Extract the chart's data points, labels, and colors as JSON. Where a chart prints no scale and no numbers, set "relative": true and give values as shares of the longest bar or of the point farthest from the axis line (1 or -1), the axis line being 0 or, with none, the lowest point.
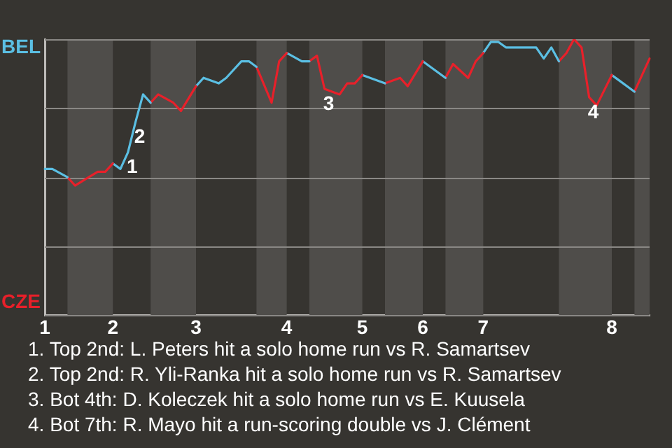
{
  "chart_data": {
    "type": "line",
    "relative": true,
    "grid": "y",
    "categories": [
      "1",
      null,
      null,
      null,
      null,
      null,
      null,
      null,
      null,
      "2",
      null,
      null,
      null,
      null,
      null,
      null,
      null,
      null,
      null,
      null,
      "3",
      null,
      null,
      null,
      null,
      null,
      null,
      null,
      null,
      null,
      null,
      null,
      "4",
      null,
      null,
      null,
      null,
      null,
      null,
      null,
      null,
      null,
      "5",
      null,
      null,
      null,
      null,
      null,
      null,
      null,
      "6",
      null,
      null,
      null,
      null,
      null,
      null,
      null,
      "7",
      null,
      null,
      null,
      null,
      null,
      null,
      null,
      null,
      null,
      null,
      null,
      null,
      null,
      null,
      null,
      null,
      "8",
      null,
      null,
      null,
      null,
      null
    ],
    "series": [
      {
        "color": "#5bbfe3",
        "values": [
          0.53,
          0.53,
          null,
          0.5,
          null,
          null,
          null,
          null,
          null,
          null,
          null,
          null,
          null,
          null,
          null,
          null,
          null,
          null,
          null,
          null,
          null,
          null,
          null,
          null,
          null,
          null,
          null,
          null,
          null,
          null,
          null,
          null,
          null,
          null,
          null,
          null,
          null,
          null,
          null,
          null,
          null,
          null,
          null,
          null,
          null,
          null,
          null,
          null,
          null,
          null,
          null,
          null,
          null,
          null,
          null,
          null,
          null,
          null,
          null,
          null,
          null,
          null,
          null,
          null,
          null,
          null,
          null,
          null,
          null,
          null,
          null,
          null,
          null,
          null,
          null,
          null,
          null,
          null,
          null,
          null,
          null
        ]
      },
      {
        "color": "#e8202a",
        "values": [
          null,
          null,
          null,
          0.5,
          0.47,
          null,
          null,
          0.52,
          0.52,
          0.55,
          null,
          null,
          null,
          null,
          null,
          null,
          null,
          null,
          null,
          null,
          null,
          null,
          null,
          null,
          null,
          null,
          null,
          null,
          null,
          null,
          null,
          null,
          null,
          null,
          null,
          null,
          null,
          null,
          null,
          null,
          null,
          null,
          null,
          null,
          null,
          null,
          null,
          null,
          null,
          null,
          null,
          null,
          null,
          null,
          null,
          null,
          null,
          null,
          null,
          null,
          null,
          null,
          null,
          null,
          null,
          null,
          null,
          null,
          null,
          null,
          null,
          null,
          null,
          null,
          null,
          null,
          null,
          null,
          null,
          null,
          null
        ]
      },
      {
        "color": "#5bbfe3",
        "values": [
          null,
          null,
          null,
          null,
          null,
          null,
          null,
          null,
          null,
          0.55,
          0.53,
          0.59,
          0.7,
          0.8,
          0.77,
          null,
          null,
          null,
          null,
          null,
          null,
          null,
          null,
          null,
          null,
          null,
          null,
          null,
          null,
          null,
          null,
          null,
          null,
          null,
          null,
          null,
          null,
          null,
          null,
          null,
          null,
          null,
          null,
          null,
          null,
          null,
          null,
          null,
          null,
          null,
          null,
          null,
          null,
          null,
          null,
          null,
          null,
          null,
          null,
          null,
          null,
          null,
          null,
          null,
          null,
          null,
          null,
          null,
          null,
          null,
          null,
          null,
          null,
          null,
          null,
          null,
          null,
          null,
          null,
          null,
          null
        ]
      },
      {
        "color": "#e8202a",
        "values": [
          null,
          null,
          null,
          null,
          null,
          null,
          null,
          null,
          null,
          null,
          null,
          null,
          null,
          null,
          0.77,
          0.8,
          null,
          0.77,
          0.74,
          null,
          0.83,
          null,
          null,
          null,
          null,
          null,
          null,
          null,
          null,
          null,
          null,
          null,
          null,
          null,
          null,
          null,
          null,
          null,
          null,
          null,
          null,
          null,
          null,
          null,
          null,
          null,
          null,
          null,
          null,
          null,
          null,
          null,
          null,
          null,
          null,
          null,
          null,
          null,
          null,
          null,
          null,
          null,
          null,
          null,
          null,
          null,
          null,
          null,
          null,
          null,
          null,
          null,
          null,
          null,
          null,
          null,
          null,
          null,
          null,
          null,
          null
        ]
      },
      {
        "color": "#5bbfe3",
        "values": [
          null,
          null,
          null,
          null,
          null,
          null,
          null,
          null,
          null,
          null,
          null,
          null,
          null,
          null,
          null,
          null,
          null,
          null,
          null,
          null,
          0.83,
          0.86,
          null,
          0.84,
          0.86,
          null,
          0.92,
          0.92,
          0.9,
          null,
          null,
          null,
          null,
          null,
          null,
          null,
          null,
          null,
          null,
          null,
          null,
          null,
          null,
          null,
          null,
          null,
          null,
          null,
          null,
          null,
          null,
          null,
          null,
          null,
          null,
          null,
          null,
          null,
          null,
          null,
          null,
          null,
          null,
          null,
          null,
          null,
          null,
          null,
          null,
          null,
          null,
          null,
          null,
          null,
          null,
          null,
          null,
          null,
          null,
          null,
          null
        ]
      },
      {
        "color": "#e8202a",
        "values": [
          null,
          null,
          null,
          null,
          null,
          null,
          null,
          null,
          null,
          null,
          null,
          null,
          null,
          null,
          null,
          null,
          null,
          null,
          null,
          null,
          null,
          null,
          null,
          null,
          null,
          null,
          null,
          null,
          0.9,
          null,
          0.77,
          0.92,
          0.95,
          null,
          null,
          null,
          null,
          null,
          null,
          null,
          null,
          null,
          null,
          null,
          null,
          null,
          null,
          null,
          null,
          null,
          null,
          null,
          null,
          null,
          null,
          null,
          null,
          null,
          null,
          null,
          null,
          null,
          null,
          null,
          null,
          null,
          null,
          null,
          null,
          null,
          null,
          null,
          null,
          null,
          null,
          null,
          null,
          null,
          null,
          null,
          null
        ]
      },
      {
        "color": "#5bbfe3",
        "values": [
          null,
          null,
          null,
          null,
          null,
          null,
          null,
          null,
          null,
          null,
          null,
          null,
          null,
          null,
          null,
          null,
          null,
          null,
          null,
          null,
          null,
          null,
          null,
          null,
          null,
          null,
          null,
          null,
          null,
          null,
          null,
          null,
          0.95,
          null,
          0.92,
          0.92,
          null,
          null,
          null,
          null,
          null,
          null,
          null,
          null,
          null,
          null,
          null,
          null,
          null,
          null,
          null,
          null,
          null,
          null,
          null,
          null,
          null,
          null,
          null,
          null,
          null,
          null,
          null,
          null,
          null,
          null,
          null,
          null,
          null,
          null,
          null,
          null,
          null,
          null,
          null,
          null,
          null,
          null,
          null,
          null,
          null
        ]
      },
      {
        "color": "#e8202a",
        "values": [
          null,
          null,
          null,
          null,
          null,
          null,
          null,
          null,
          null,
          null,
          null,
          null,
          null,
          null,
          null,
          null,
          null,
          null,
          null,
          null,
          null,
          null,
          null,
          null,
          null,
          null,
          null,
          null,
          null,
          null,
          null,
          null,
          null,
          null,
          null,
          0.92,
          0.94,
          0.82,
          null,
          0.8,
          0.84,
          0.84,
          0.87,
          null,
          null,
          null,
          null,
          null,
          null,
          null,
          null,
          null,
          null,
          null,
          null,
          null,
          null,
          null,
          null,
          null,
          null,
          null,
          null,
          null,
          null,
          null,
          null,
          null,
          null,
          null,
          null,
          null,
          null,
          null,
          null,
          null,
          null,
          null,
          null,
          null,
          null
        ]
      },
      {
        "color": "#5bbfe3",
        "values": [
          null,
          null,
          null,
          null,
          null,
          null,
          null,
          null,
          null,
          null,
          null,
          null,
          null,
          null,
          null,
          null,
          null,
          null,
          null,
          null,
          null,
          null,
          null,
          null,
          null,
          null,
          null,
          null,
          null,
          null,
          null,
          null,
          null,
          null,
          null,
          null,
          null,
          null,
          null,
          null,
          null,
          null,
          0.87,
          null,
          null,
          0.84,
          null,
          null,
          null,
          null,
          null,
          null,
          null,
          null,
          null,
          null,
          null,
          null,
          null,
          null,
          null,
          null,
          null,
          null,
          null,
          null,
          null,
          null,
          null,
          null,
          null,
          null,
          null,
          null,
          null,
          null,
          null,
          null,
          null,
          null,
          null
        ]
      },
      {
        "color": "#e8202a",
        "values": [
          null,
          null,
          null,
          null,
          null,
          null,
          null,
          null,
          null,
          null,
          null,
          null,
          null,
          null,
          null,
          null,
          null,
          null,
          null,
          null,
          null,
          null,
          null,
          null,
          null,
          null,
          null,
          null,
          null,
          null,
          null,
          null,
          null,
          null,
          null,
          null,
          null,
          null,
          null,
          null,
          null,
          null,
          null,
          null,
          null,
          0.84,
          null,
          0.86,
          0.83,
          null,
          0.92,
          null,
          null,
          null,
          null,
          null,
          null,
          null,
          null,
          null,
          null,
          null,
          null,
          null,
          null,
          null,
          null,
          null,
          null,
          null,
          null,
          null,
          null,
          null,
          null,
          null,
          null,
          null,
          null,
          null,
          null
        ]
      },
      {
        "color": "#5bbfe3",
        "values": [
          null,
          null,
          null,
          null,
          null,
          null,
          null,
          null,
          null,
          null,
          null,
          null,
          null,
          null,
          null,
          null,
          null,
          null,
          null,
          null,
          null,
          null,
          null,
          null,
          null,
          null,
          null,
          null,
          null,
          null,
          null,
          null,
          null,
          null,
          null,
          null,
          null,
          null,
          null,
          null,
          null,
          null,
          null,
          null,
          null,
          null,
          null,
          null,
          null,
          null,
          0.92,
          0.9,
          null,
          0.86,
          null,
          null,
          null,
          null,
          null,
          null,
          null,
          null,
          null,
          null,
          null,
          null,
          null,
          null,
          null,
          null,
          null,
          null,
          null,
          null,
          null,
          null,
          null,
          null,
          null,
          null,
          null
        ]
      },
      {
        "color": "#e8202a",
        "values": [
          null,
          null,
          null,
          null,
          null,
          null,
          null,
          null,
          null,
          null,
          null,
          null,
          null,
          null,
          null,
          null,
          null,
          null,
          null,
          null,
          null,
          null,
          null,
          null,
          null,
          null,
          null,
          null,
          null,
          null,
          null,
          null,
          null,
          null,
          null,
          null,
          null,
          null,
          null,
          null,
          null,
          null,
          null,
          null,
          null,
          null,
          null,
          null,
          null,
          null,
          null,
          null,
          null,
          0.86,
          0.91,
          null,
          0.86,
          0.92,
          0.95,
          null,
          null,
          null,
          null,
          null,
          null,
          null,
          null,
          null,
          null,
          null,
          null,
          null,
          null,
          null,
          null,
          null,
          null,
          null,
          null,
          null,
          null
        ]
      },
      {
        "color": "#5bbfe3",
        "values": [
          null,
          null,
          null,
          null,
          null,
          null,
          null,
          null,
          null,
          null,
          null,
          null,
          null,
          null,
          null,
          null,
          null,
          null,
          null,
          null,
          null,
          null,
          null,
          null,
          null,
          null,
          null,
          null,
          null,
          null,
          null,
          null,
          null,
          null,
          null,
          null,
          null,
          null,
          null,
          null,
          null,
          null,
          null,
          null,
          null,
          null,
          null,
          null,
          null,
          null,
          null,
          null,
          null,
          null,
          null,
          null,
          null,
          null,
          0.95,
          0.99,
          0.99,
          0.97,
          null,
          null,
          null,
          0.97,
          0.93,
          0.97,
          0.92,
          null,
          null,
          null,
          null,
          null,
          null,
          null,
          null,
          null,
          null,
          null,
          null
        ]
      },
      {
        "color": "#e8202a",
        "values": [
          null,
          null,
          null,
          null,
          null,
          null,
          null,
          null,
          null,
          null,
          null,
          null,
          null,
          null,
          null,
          null,
          null,
          null,
          null,
          null,
          null,
          null,
          null,
          null,
          null,
          null,
          null,
          null,
          null,
          null,
          null,
          null,
          null,
          null,
          null,
          null,
          null,
          null,
          null,
          null,
          null,
          null,
          null,
          null,
          null,
          null,
          null,
          null,
          null,
          null,
          null,
          null,
          null,
          null,
          null,
          null,
          null,
          null,
          null,
          null,
          null,
          null,
          null,
          null,
          null,
          null,
          null,
          null,
          0.92,
          0.95,
          1,
          0.97,
          0.79,
          0.76,
          null,
          0.87,
          null,
          null,
          null,
          null,
          null
        ]
      },
      {
        "color": "#5bbfe3",
        "values": [
          null,
          null,
          null,
          null,
          null,
          null,
          null,
          null,
          null,
          null,
          null,
          null,
          null,
          null,
          null,
          null,
          null,
          null,
          null,
          null,
          null,
          null,
          null,
          null,
          null,
          null,
          null,
          null,
          null,
          null,
          null,
          null,
          null,
          null,
          null,
          null,
          null,
          null,
          null,
          null,
          null,
          null,
          null,
          null,
          null,
          null,
          null,
          null,
          null,
          null,
          null,
          null,
          null,
          null,
          null,
          null,
          null,
          null,
          null,
          null,
          null,
          null,
          null,
          null,
          null,
          null,
          null,
          null,
          null,
          null,
          null,
          null,
          null,
          null,
          null,
          0.87,
          0.85,
          null,
          0.81,
          null,
          null
        ]
      },
      {
        "color": "#e8202a",
        "values": [
          null,
          null,
          null,
          null,
          null,
          null,
          null,
          null,
          null,
          null,
          null,
          null,
          null,
          null,
          null,
          null,
          null,
          null,
          null,
          null,
          null,
          null,
          null,
          null,
          null,
          null,
          null,
          null,
          null,
          null,
          null,
          null,
          null,
          null,
          null,
          null,
          null,
          null,
          null,
          null,
          null,
          null,
          null,
          null,
          null,
          null,
          null,
          null,
          null,
          null,
          null,
          null,
          null,
          null,
          null,
          null,
          null,
          null,
          null,
          null,
          null,
          null,
          null,
          null,
          null,
          null,
          null,
          null,
          null,
          null,
          null,
          null,
          null,
          null,
          null,
          null,
          null,
          null,
          0.81,
          null,
          0.93
        ]
      }
    ],
    "annotations": [
      "BEL",
      "CZE",
      {
        "text": "1",
        "y": 0.59
      },
      {
        "text": "2",
        "y": 0.7
      },
      {
        "text": "3",
        "y": 0.82
      },
      {
        "text": "4",
        "y": 0.79
      },
      "1. Top 2nd: L. Peters hit a solo home run vs R. Samartsev",
      "2. Top 2nd: R. Yli-Ranka hit a solo home run vs R. Samartsev",
      "3. Bot 4th: D. Koleczek hit a solo home run vs E. Kuusela",
      "4. Bot 7th: R. Mayo hit a run-scoring double vs J. Clément"
    ]
  }
}
